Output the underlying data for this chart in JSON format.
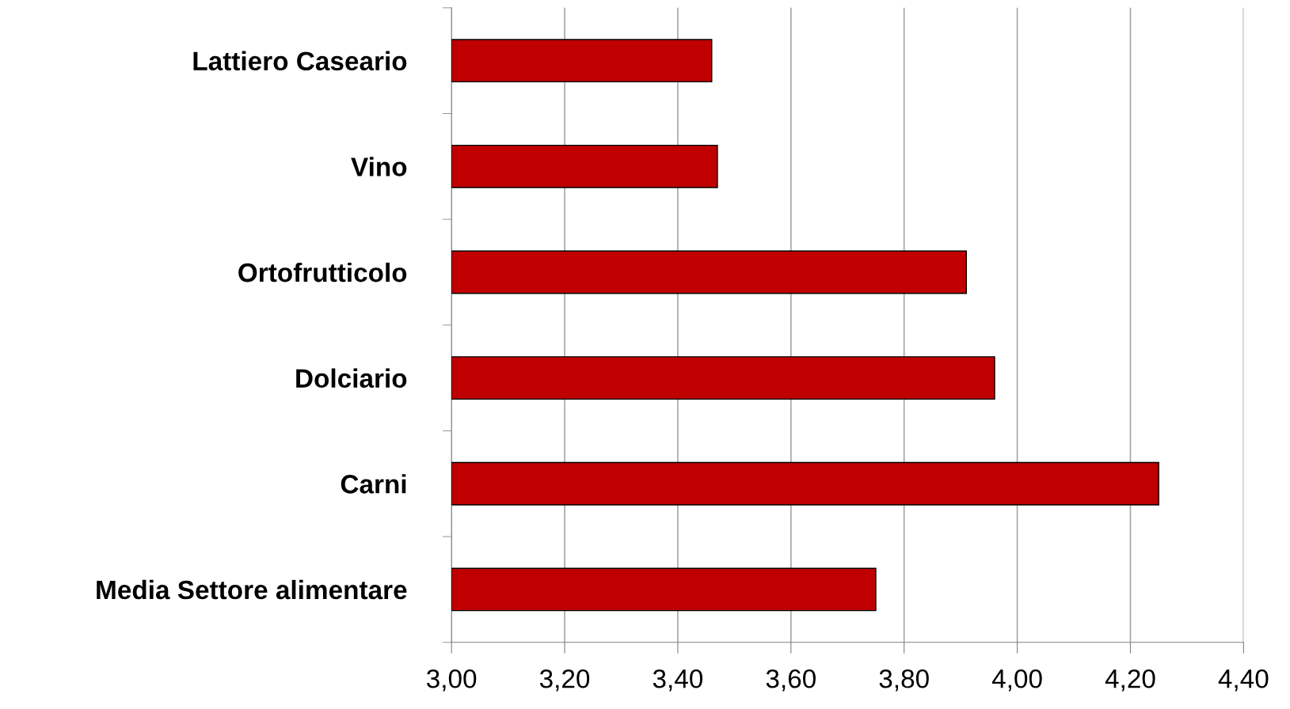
{
  "chart_data": {
    "type": "bar",
    "orientation": "horizontal",
    "categories": [
      "Lattiero Caseario",
      "Vino",
      "Ortofrutticolo",
      "Dolciario",
      "Carni",
      "Media Settore alimentare"
    ],
    "values": [
      3.46,
      3.47,
      3.91,
      3.96,
      4.25,
      3.75
    ],
    "color": "#c00000",
    "xlim": [
      3.0,
      4.4
    ],
    "xticks": [
      {
        "value": 3.0,
        "label": "3,00"
      },
      {
        "value": 3.2,
        "label": "3,20"
      },
      {
        "value": 3.4,
        "label": "3,40"
      },
      {
        "value": 3.6,
        "label": "3,60"
      },
      {
        "value": 3.8,
        "label": "3,80"
      },
      {
        "value": 4.0,
        "label": "4,00"
      },
      {
        "value": 4.2,
        "label": "4,20"
      },
      {
        "value": 4.4,
        "label": "4,40"
      }
    ],
    "grid": "x",
    "legend": false
  }
}
